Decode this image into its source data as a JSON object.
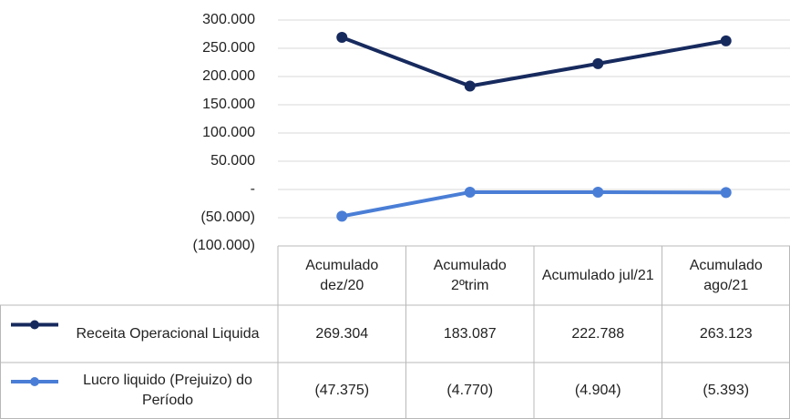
{
  "chart_data": {
    "type": "line",
    "categories": [
      "Acumulado dez/20",
      "Acumulado 2ºtrim",
      "Acumulado jul/21",
      "Acumulado ago/21"
    ],
    "series": [
      {
        "name": "Receita Operacional Liquida",
        "color": "#172a5e",
        "values": [
          269304,
          183087,
          222788,
          263123
        ],
        "value_labels": [
          "269.304",
          "183.087",
          "222.788",
          "263.123"
        ]
      },
      {
        "name": "Lucro liquido (Prejuizo) do Período",
        "color": "#4a7ed6",
        "values": [
          -47375,
          -4770,
          -4904,
          -5393
        ],
        "value_labels": [
          "(47.375)",
          "(4.770)",
          "(4.904)",
          "(5.393)"
        ]
      }
    ],
    "ylim": [
      -100000,
      300000
    ],
    "yticks": [
      {
        "value": 300000,
        "label": "300.000"
      },
      {
        "value": 250000,
        "label": "250.000"
      },
      {
        "value": 200000,
        "label": "200.000"
      },
      {
        "value": 150000,
        "label": "150.000"
      },
      {
        "value": 100000,
        "label": "100.000"
      },
      {
        "value": 50000,
        "label": "50.000"
      },
      {
        "value": 0,
        "label": "-"
      },
      {
        "value": -50000,
        "label": "(50.000)"
      },
      {
        "value": -100000,
        "label": "(100.000)"
      }
    ],
    "grid": true
  }
}
